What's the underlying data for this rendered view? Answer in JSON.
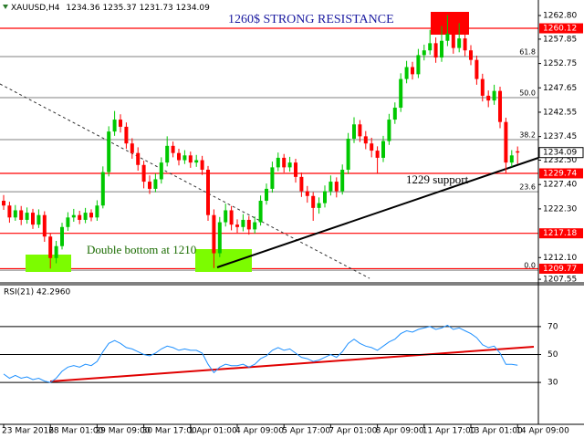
{
  "chart_data": [
    {
      "type": "candlestick",
      "header": "XAUUSD,H4",
      "categories": [
        "23 Mar 2016",
        null,
        null,
        null,
        null,
        null,
        null,
        null,
        "28 Mar 01:00",
        null,
        null,
        null,
        null,
        null,
        null,
        null,
        "29 Mar 09:00",
        null,
        null,
        null,
        null,
        null,
        null,
        null,
        "30 Mar 17:00",
        null,
        null,
        null,
        null,
        null,
        null,
        null,
        "1 Apr 01:00",
        null,
        null,
        null,
        null,
        null,
        null,
        null,
        "4 Apr 09:00",
        null,
        null,
        null,
        null,
        null,
        null,
        null,
        "5 Apr 17:00",
        null,
        null,
        null,
        null,
        null,
        null,
        null,
        "7 Apr 01:00",
        null,
        null,
        null,
        null,
        null,
        null,
        null,
        "8 Apr 09:00",
        null,
        null,
        null,
        null,
        null,
        null,
        null,
        "11 Apr 17:00",
        null,
        null,
        null,
        null,
        null,
        null,
        null,
        "13 Apr 01:00",
        null,
        null,
        null,
        null,
        null,
        null,
        null,
        "14 Apr 09:00"
      ],
      "open": [
        1224.0,
        1223.0,
        1220.5,
        1222.0,
        1220.0,
        1221.5,
        1219.0,
        1221.0,
        1216.5,
        1212.0,
        1214.5,
        1218.5,
        1220.5,
        1221.0,
        1220.0,
        1221.5,
        1220.5,
        1223.0,
        1230.0,
        1238.5,
        1241.0,
        1239.5,
        1236.0,
        1234.0,
        1231.5,
        1228.0,
        1226.5,
        1228.5,
        1232.0,
        1235.5,
        1234.0,
        1232.5,
        1233.5,
        1232.0,
        1232.5,
        1230.5,
        1221.0,
        1213.0,
        1219.5,
        1222.0,
        1219.0,
        1218.5,
        1220.0,
        1218.0,
        1219.5,
        1224.0,
        1226.5,
        1231.0,
        1233.0,
        1231.0,
        1232.0,
        1229.0,
        1226.0,
        1225.0,
        1222.5,
        1223.5,
        1226.0,
        1228.0,
        1226.0,
        1230.5,
        1237.0,
        1240.0,
        1237.5,
        1236.0,
        1234.5,
        1233.0,
        1236.5,
        1241.0,
        1243.5,
        1249.5,
        1252.0,
        1250.5,
        1254.5,
        1255.5,
        1257.0,
        1254.0,
        1257.5,
        1259.0,
        1256.0,
        1258.0,
        1255.5,
        1253.5,
        1249.5,
        1246.0,
        1245.0,
        1247.0,
        1240.5,
        1232.0,
        1234.36
      ],
      "high": [
        1225.2,
        1223.8,
        1223.1,
        1222.9,
        1222.6,
        1222.3,
        1222.2,
        1221.8,
        1217.2,
        1215.6,
        1219.4,
        1221.6,
        1222.3,
        1221.9,
        1222.5,
        1222.2,
        1224.1,
        1231.2,
        1239.6,
        1242.8,
        1242.1,
        1240.4,
        1237.1,
        1235.2,
        1232.4,
        1229.3,
        1229.7,
        1233.1,
        1237.5,
        1236.4,
        1234.9,
        1234.6,
        1234.3,
        1233.6,
        1233.4,
        1231.3,
        1222.2,
        1220.6,
        1223.4,
        1222.9,
        1220.1,
        1221.2,
        1220.8,
        1220.7,
        1225.1,
        1227.6,
        1232.2,
        1234.1,
        1233.8,
        1233.2,
        1232.8,
        1229.9,
        1227.1,
        1225.8,
        1224.7,
        1227.2,
        1229.3,
        1228.9,
        1231.6,
        1238.2,
        1241.5,
        1240.9,
        1238.6,
        1237.2,
        1235.4,
        1237.6,
        1242.2,
        1244.6,
        1250.7,
        1253.3,
        1253.1,
        1255.8,
        1256.7,
        1259.8,
        1258.2,
        1260.6,
        1262.9,
        1260.1,
        1261.2,
        1258.9,
        1256.6,
        1254.4,
        1250.6,
        1247.1,
        1248.3,
        1247.9,
        1241.4,
        1234.6,
        1235.37
      ],
      "low": [
        1222.1,
        1219.4,
        1219.8,
        1218.9,
        1219.2,
        1218.1,
        1218.3,
        1215.4,
        1209.8,
        1210.9,
        1213.8,
        1217.7,
        1219.6,
        1219.1,
        1219.3,
        1219.7,
        1219.8,
        1222.4,
        1229.1,
        1237.6,
        1238.3,
        1234.9,
        1232.8,
        1230.3,
        1226.6,
        1225.4,
        1225.8,
        1227.6,
        1231.2,
        1233.1,
        1231.4,
        1231.7,
        1230.9,
        1231.1,
        1229.4,
        1219.8,
        1209.9,
        1212.2,
        1218.6,
        1217.8,
        1217.3,
        1217.6,
        1216.9,
        1217.1,
        1218.8,
        1223.2,
        1225.7,
        1230.2,
        1229.9,
        1230.1,
        1227.8,
        1224.8,
        1223.6,
        1219.8,
        1221.3,
        1222.6,
        1225.1,
        1224.7,
        1225.3,
        1229.6,
        1236.1,
        1236.3,
        1234.8,
        1233.1,
        1229.8,
        1232.1,
        1235.7,
        1240.1,
        1242.6,
        1248.6,
        1249.4,
        1249.7,
        1253.4,
        1254.6,
        1252.9,
        1253.1,
        1256.4,
        1254.8,
        1255.1,
        1254.3,
        1252.4,
        1248.3,
        1244.8,
        1243.6,
        1244.1,
        1239.2,
        1229.7,
        1231.1,
        1231.73
      ],
      "close": [
        1223.0,
        1220.5,
        1222.0,
        1220.0,
        1221.5,
        1219.0,
        1221.0,
        1216.5,
        1212.0,
        1214.5,
        1218.5,
        1220.5,
        1221.0,
        1220.0,
        1221.5,
        1220.5,
        1223.0,
        1230.0,
        1238.5,
        1241.0,
        1239.5,
        1236.0,
        1234.0,
        1231.5,
        1228.0,
        1226.5,
        1228.5,
        1232.0,
        1235.5,
        1234.0,
        1232.5,
        1233.5,
        1232.0,
        1232.5,
        1230.5,
        1221.0,
        1213.0,
        1219.5,
        1222.0,
        1219.0,
        1218.5,
        1220.0,
        1218.0,
        1219.5,
        1224.0,
        1226.5,
        1231.0,
        1233.0,
        1231.0,
        1232.0,
        1229.0,
        1226.0,
        1225.0,
        1222.5,
        1223.5,
        1226.0,
        1228.0,
        1226.0,
        1230.5,
        1237.0,
        1240.0,
        1237.5,
        1236.0,
        1234.5,
        1233.0,
        1236.5,
        1241.0,
        1243.5,
        1249.5,
        1252.0,
        1250.5,
        1254.5,
        1255.5,
        1257.0,
        1254.0,
        1257.5,
        1259.0,
        1256.0,
        1258.0,
        1255.5,
        1253.5,
        1249.5,
        1246.0,
        1245.0,
        1247.0,
        1240.5,
        1232.0,
        1233.5,
        1234.09
      ],
      "up_color": "#00c800",
      "down_color": "#ff0000",
      "ylim": [
        1206.8,
        1266.05
      ],
      "yticks": [
        {
          "value": 1262.8,
          "label": "1262.80"
        },
        1257.85,
        1252.75,
        1247.65,
        1242.55,
        1237.45,
        {
          "value": 1232.5,
          "label": "1232.50"
        },
        {
          "value": 1227.4,
          "label": "1227.40"
        },
        {
          "value": 1222.3,
          "label": "1222.30"
        },
        {
          "value": 1212.1,
          "label": "1212.10"
        },
        1207.55
      ],
      "price_lines": [
        {
          "value": 1260.12,
          "color": "#ff0000"
        },
        {
          "value": 1229.74,
          "color": "#ff0000"
        },
        {
          "value": 1217.18,
          "color": "#ff0000"
        },
        {
          "value": 1209.77,
          "color": "#ff0000"
        }
      ],
      "fib_levels": [
        {
          "label": "61.8",
          "price": 1254.2
        },
        {
          "label": "50.0",
          "price": 1245.6
        },
        {
          "label": "38.2",
          "price": 1236.8
        },
        {
          "label": "23.6",
          "price": 1225.9
        },
        {
          "label": "0.0",
          "price": 1209.45
        }
      ],
      "fib_color": "#808080",
      "annotations": [
        "1260$ STRONG RESISTANCE",
        "1229 support",
        "Double bottom at 1210"
      ]
    },
    {
      "type": "line",
      "title": "RSI(21) 42.2960",
      "color": "#1e90ff",
      "values": [
        36,
        33,
        35,
        33,
        34,
        32,
        33,
        31,
        30,
        33,
        38,
        41,
        42,
        41,
        43,
        42,
        45,
        52,
        58,
        60,
        58,
        55,
        54,
        52,
        50,
        49,
        51,
        54,
        56,
        55,
        53,
        54,
        53,
        53,
        51,
        43,
        37,
        41,
        43,
        42,
        42,
        43,
        41,
        43,
        47,
        49,
        53,
        55,
        53,
        54,
        51,
        48,
        47,
        45,
        46,
        48,
        50,
        48,
        52,
        58,
        61,
        58,
        56,
        55,
        53,
        56,
        59,
        61,
        65,
        67,
        66,
        68,
        69,
        70,
        68,
        69,
        71,
        68,
        69,
        67,
        65,
        62,
        57,
        55,
        56,
        51,
        43,
        43,
        42.296
      ],
      "ylim": [
        0,
        100
      ],
      "yticks": [
        30,
        50,
        70
      ]
    }
  ]
}
